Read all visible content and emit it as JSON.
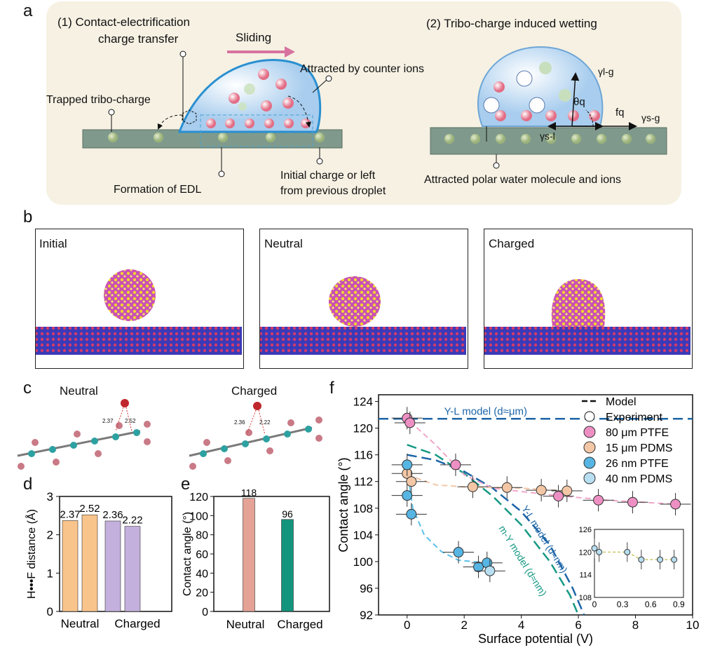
{
  "panels": [
    "a",
    "b",
    "c",
    "d",
    "e",
    "f"
  ],
  "panel_a": {
    "step1": "(1) Contact-electrification",
    "step1_line2": "charge transfer",
    "sliding": "Sliding",
    "attracted_counter": "Attracted by counter ions",
    "trapped": "Trapped tribo-charge",
    "edl": "Formation of EDL",
    "initial_charge": "Initial charge or left",
    "initial_charge_2": "from  previous  droplet",
    "step2": "(2)   Tribo-charge  induced  wetting",
    "gamma_lg": "γl-g",
    "gamma_sg": "γs-g",
    "gamma_sl": "γs-l",
    "theta": "θq",
    "fq": "fq",
    "attracted_polar": "Attracted polar water molecule and ions"
  },
  "panel_b": {
    "titles": [
      "Initial",
      "Neutral",
      "Charged"
    ]
  },
  "panel_c": {
    "neutral": "Neutral",
    "charged": "Charged",
    "neutral_d1": "2.37",
    "neutral_d2": "2.52",
    "charged_d1": "2.36",
    "charged_d2": "2.22"
  },
  "chart_data": [
    {
      "id": "d",
      "type": "bar",
      "ylabel": "H•••F distance (Å)",
      "ylim": [
        0,
        3
      ],
      "yticks": [
        "0",
        "1",
        "2",
        "3"
      ],
      "groups": [
        "Neutral",
        "Charged"
      ],
      "values": [
        2.37,
        2.52,
        2.36,
        2.22
      ],
      "labels": [
        "2.37",
        "2.52",
        "2.36",
        "2.22"
      ],
      "colors": [
        "#f9c48b",
        "#f9c48b",
        "#c3b0dc",
        "#c3b0dc"
      ]
    },
    {
      "id": "e",
      "type": "bar",
      "ylabel": "Contact angle (°)",
      "ylim": [
        0,
        120
      ],
      "yticks": [
        "0",
        "20",
        "40",
        "60",
        "80",
        "100",
        "120"
      ],
      "categories": [
        "Neutral",
        "Charged"
      ],
      "values": [
        118,
        96
      ],
      "labels": [
        "118",
        "96"
      ],
      "colors": [
        "#e4a396",
        "#13947d"
      ]
    },
    {
      "id": "f",
      "type": "scatter",
      "xlabel": "Surface potential (V)",
      "ylabel": "Contact angle (°)",
      "xlim": [
        -1,
        10
      ],
      "ylim": [
        92,
        125
      ],
      "xticks": [
        "0",
        "2",
        "4",
        "6",
        "8",
        "10"
      ],
      "yticks": [
        "92",
        "96",
        "100",
        "104",
        "108",
        "112",
        "116",
        "120",
        "124"
      ],
      "legend": [
        "Model",
        "Experiment",
        "80 μm PTFE",
        "15 μm PDMS",
        "26 nm PTFE",
        "40 nm PDMS"
      ],
      "annotations": [
        "Y-L model (d≈μm)",
        "Y-L model (d≈nm)",
        "m-Y model (d≈nm)"
      ],
      "series": [
        {
          "name": "80 μm PTFE",
          "color": "#ee8fc4",
          "points": [
            [
              0,
              121.5
            ],
            [
              0.1,
              120.8
            ],
            [
              1.7,
              114.5
            ],
            [
              5.3,
              109.8
            ],
            [
              6.7,
              109.2
            ],
            [
              7.9,
              108.9
            ],
            [
              9.4,
              108.6
            ]
          ]
        },
        {
          "name": "15 μm PDMS",
          "color": "#f3c7a6",
          "points": [
            [
              0,
              113.2
            ],
            [
              0.15,
              112.0
            ],
            [
              2.3,
              111.2
            ],
            [
              3.5,
              111.1
            ],
            [
              4.7,
              110.7
            ],
            [
              5.6,
              110.6
            ]
          ]
        },
        {
          "name": "26 nm PTFE",
          "color": "#57b5e3",
          "points": [
            [
              0,
              114.5
            ],
            [
              0,
              109.9
            ],
            [
              0.15,
              107.1
            ],
            [
              1.8,
              101.4
            ],
            [
              2.5,
              99.2
            ],
            [
              2.8,
              99.8
            ]
          ]
        },
        {
          "name": "40 nm PDMS",
          "color": "#b8def1",
          "points": [
            [
              2.9,
              98.6
            ]
          ]
        }
      ],
      "inset": {
        "xticks": [
          "0",
          "0.3",
          "0.6",
          "0.9"
        ],
        "yticks": [
          "108",
          "114",
          "120",
          "126"
        ],
        "points": [
          [
            0,
            121
          ],
          [
            0.05,
            120
          ],
          [
            0.35,
            120
          ],
          [
            0.5,
            118
          ],
          [
            0.7,
            118
          ],
          [
            0.85,
            118
          ]
        ]
      }
    }
  ]
}
